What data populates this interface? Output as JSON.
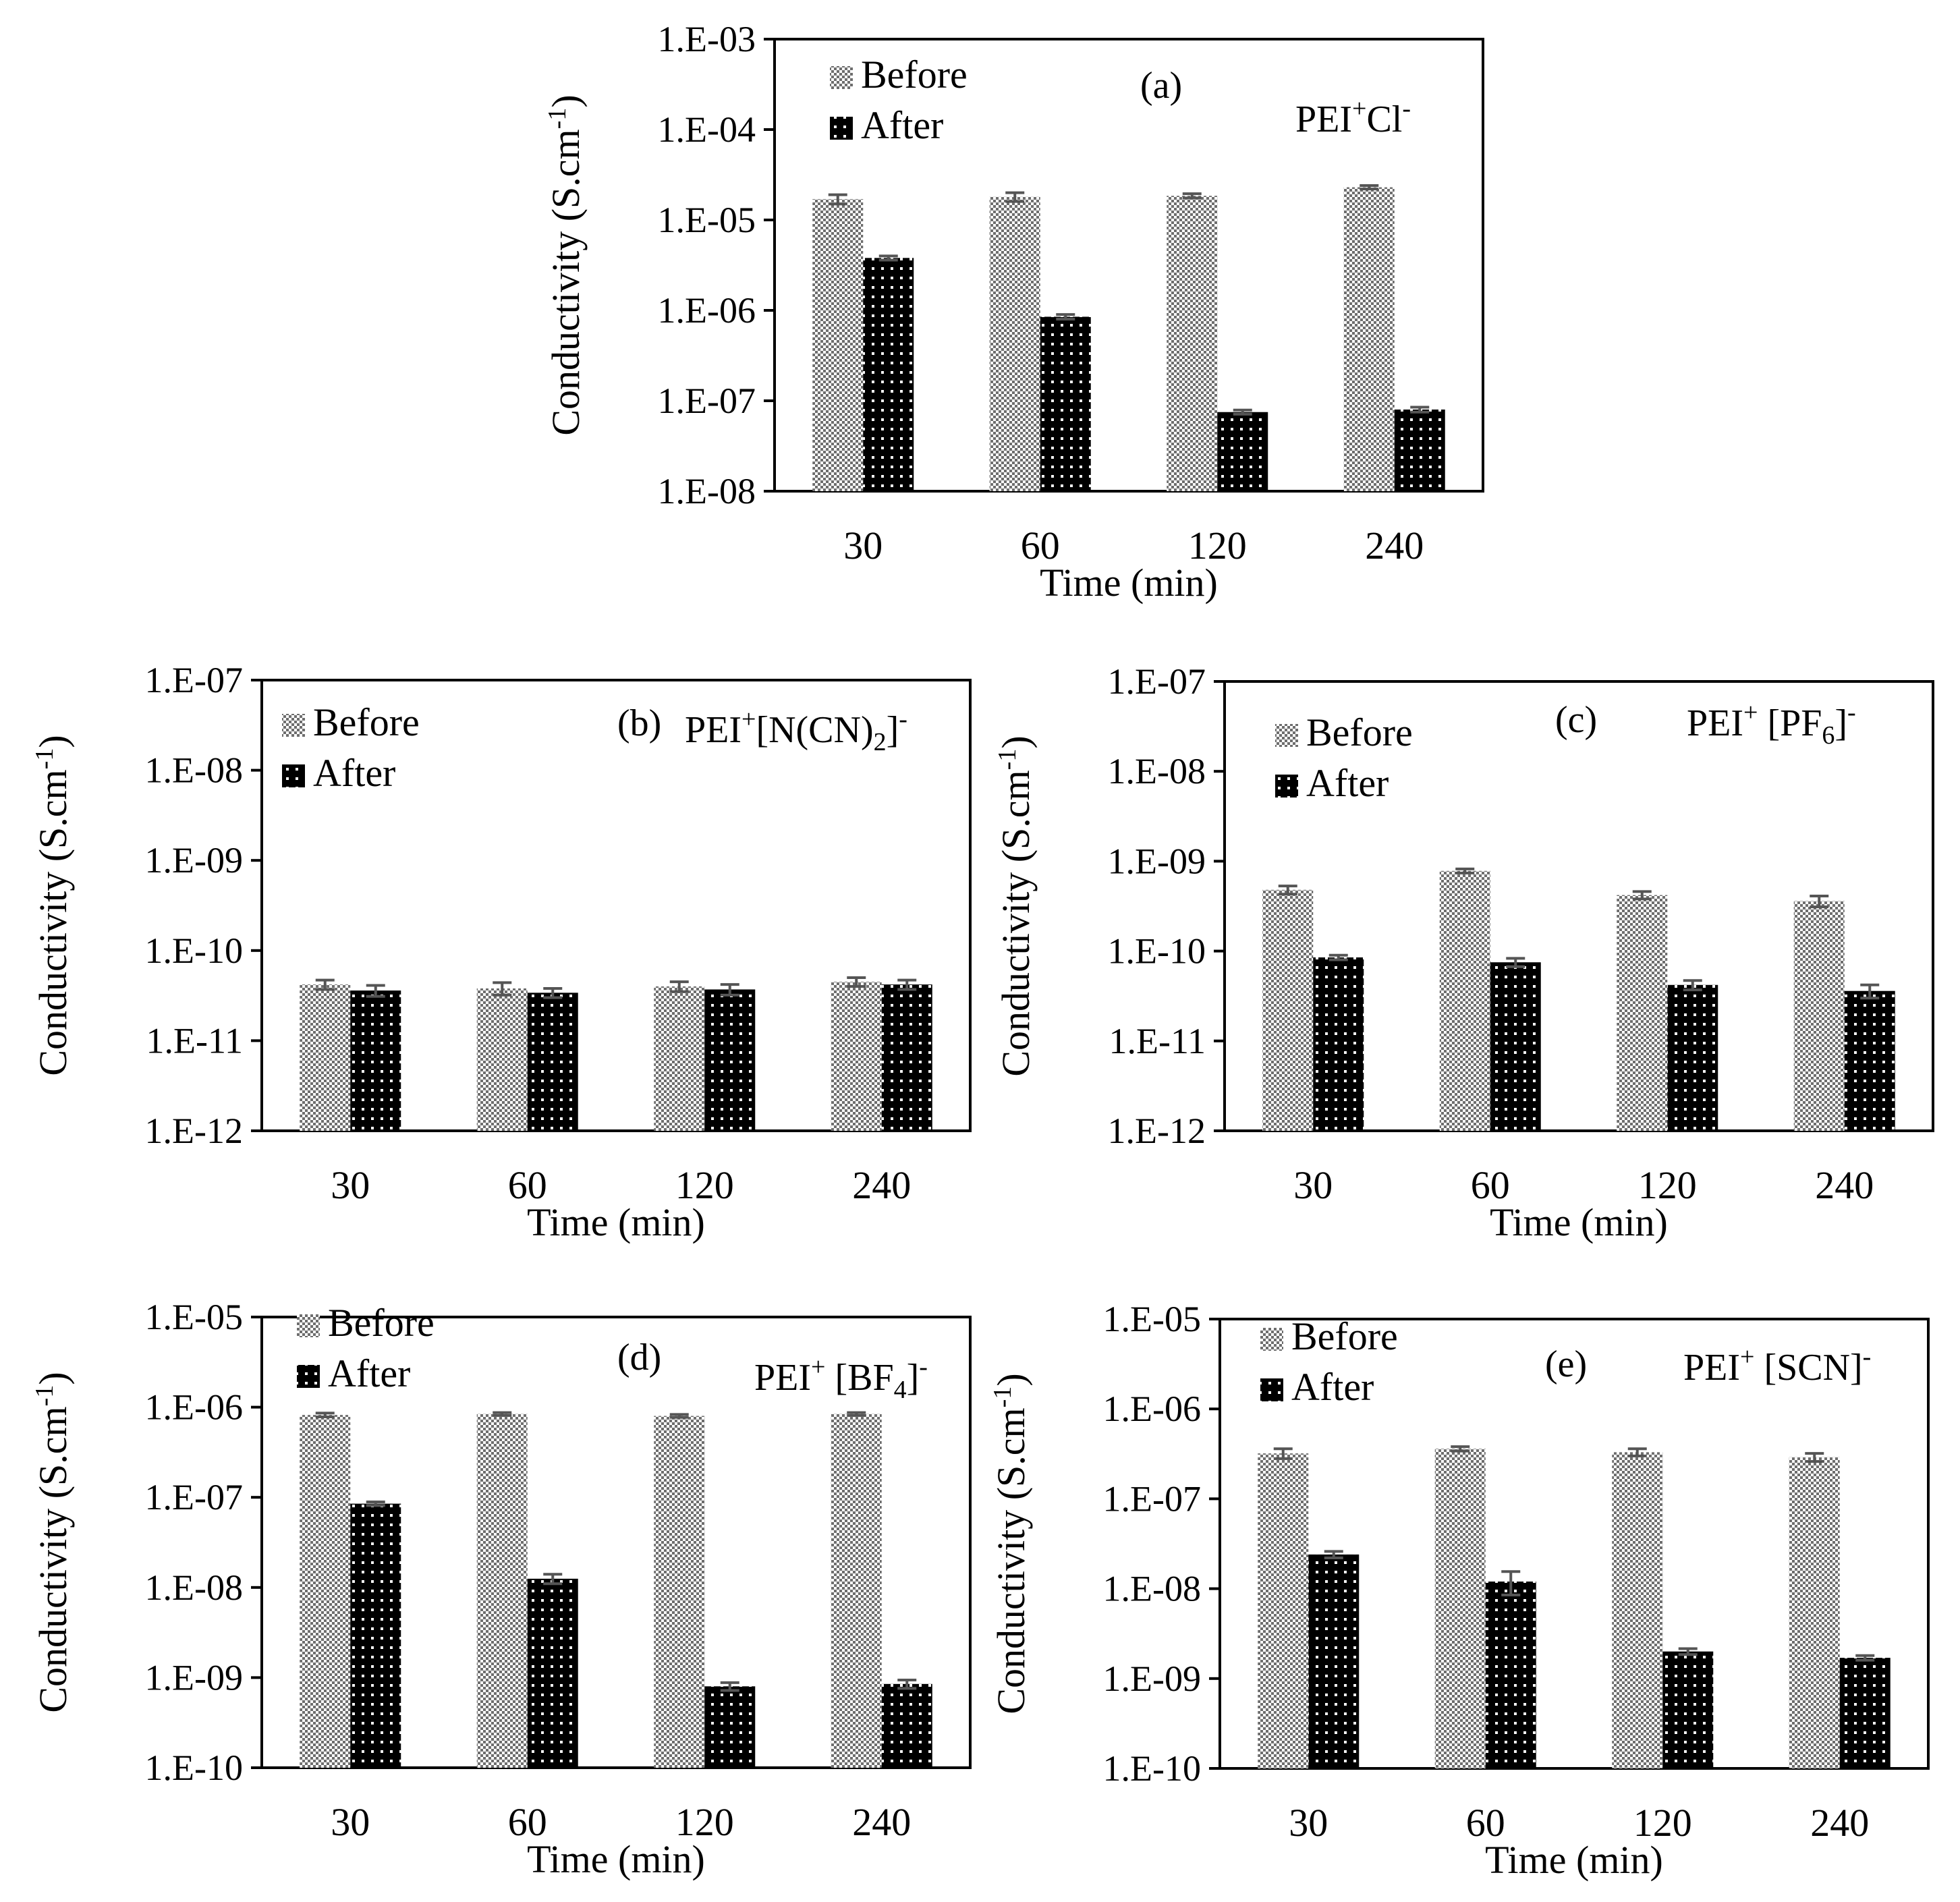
{
  "figure": {
    "colors": {
      "before_fill": "#8c8c8c",
      "after_fill": "#000000",
      "error_bar": "#555555",
      "axis": "#000000"
    }
  },
  "chart_data": [
    {
      "id": "a",
      "type": "bar",
      "panel_label": "(a)",
      "compound": {
        "base": "PEI",
        "cation_charge": "+",
        "anion_parts": [
          {
            "t": "Cl"
          }
        ],
        "anion_charge": "-"
      },
      "xlabel": "Time (min)",
      "ylabel": "Conductivity (S.cm",
      "ylabel_sup": "-1",
      "ylabel_close": ")",
      "yscale": "log",
      "ylim": [
        1e-08,
        0.001
      ],
      "ytick_labels": [
        "1.E-08",
        "1.E-07",
        "1.E-06",
        "1.E-05",
        "1.E-04",
        "1.E-03"
      ],
      "categories": [
        "30",
        "60",
        "120",
        "240"
      ],
      "legend": [
        "Before",
        "After"
      ],
      "series": [
        {
          "name": "Before",
          "values": [
            1.7e-05,
            1.8e-05,
            1.85e-05,
            2.3e-05
          ],
          "errors": [
            2e-06,
            2e-06,
            1e-06,
            1e-06
          ]
        },
        {
          "name": "After",
          "values": [
            3.8e-06,
            8.5e-07,
            7.5e-08,
            8e-08
          ],
          "errors": [
            2e-07,
            5e-08,
            4e-09,
            5e-09
          ]
        }
      ]
    },
    {
      "id": "b",
      "type": "bar",
      "panel_label": "(b)",
      "compound": {
        "base": "PEI",
        "cation_charge": "+",
        "anion_parts": [
          {
            "t": "[N(CN)"
          },
          {
            "t": "2",
            "sub": true
          },
          {
            "t": "]"
          }
        ],
        "anion_charge": "-"
      },
      "xlabel": "Time (min)",
      "ylabel": "Conductivity (S.cm",
      "ylabel_sup": "-1",
      "ylabel_close": ")",
      "yscale": "log",
      "ylim": [
        1e-12,
        1e-07
      ],
      "ytick_labels": [
        "1.E-12",
        "1.E-11",
        "1.E-10",
        "1.E-09",
        "1.E-08",
        "1.E-07"
      ],
      "categories": [
        "30",
        "60",
        "120",
        "240"
      ],
      "legend": [
        "Before",
        "After"
      ],
      "series": [
        {
          "name": "Before",
          "values": [
            4.2e-11,
            3.8e-11,
            4e-11,
            4.5e-11
          ],
          "errors": [
            5e-12,
            6e-12,
            5e-12,
            5e-12
          ]
        },
        {
          "name": "After",
          "values": [
            3.6e-11,
            3.4e-11,
            3.7e-11,
            4.2e-11
          ],
          "errors": [
            5e-12,
            4e-12,
            5e-12,
            5e-12
          ]
        }
      ]
    },
    {
      "id": "c",
      "type": "bar",
      "panel_label": "(c)",
      "compound": {
        "base": "PEI",
        "cation_charge": "+",
        "anion_parts": [
          {
            "t": " [PF"
          },
          {
            "t": "6",
            "sub": true
          },
          {
            "t": "]"
          }
        ],
        "anion_charge": "-"
      },
      "xlabel": "Time (min)",
      "ylabel": "Conductivity (S.cm",
      "ylabel_sup": "-1",
      "ylabel_close": ")",
      "yscale": "log",
      "ylim": [
        1e-12,
        1e-07
      ],
      "ytick_labels": [
        "1.E-12",
        "1.E-11",
        "1.E-10",
        "1.E-09",
        "1.E-08",
        "1.E-07"
      ],
      "categories": [
        "30",
        "60",
        "120",
        "240"
      ],
      "legend": [
        "Before",
        "After"
      ],
      "series": [
        {
          "name": "Before",
          "values": [
            4.8e-10,
            7.8e-10,
            4.2e-10,
            3.6e-10
          ],
          "errors": [
            5e-11,
            4e-11,
            4e-11,
            5e-11
          ]
        },
        {
          "name": "After",
          "values": [
            8.5e-11,
            7.5e-11,
            4.2e-11,
            3.6e-11
          ],
          "errors": [
            5e-12,
            8e-12,
            5e-12,
            6e-12
          ]
        }
      ]
    },
    {
      "id": "d",
      "type": "bar",
      "panel_label": "(d)",
      "compound": {
        "base": "PEI",
        "cation_charge": "+",
        "anion_parts": [
          {
            "t": " [BF"
          },
          {
            "t": "4",
            "sub": true
          },
          {
            "t": "]"
          }
        ],
        "anion_charge": "-"
      },
      "xlabel": "Time (min)",
      "ylabel": "Conductivity (S.cm",
      "ylabel_sup": "-1",
      "ylabel_close": ")",
      "yscale": "log",
      "ylim": [
        1e-10,
        1e-05
      ],
      "ytick_labels": [
        "1.E-10",
        "1.E-09",
        "1.E-08",
        "1.E-07",
        "1.E-06",
        "1.E-05"
      ],
      "categories": [
        "30",
        "60",
        "120",
        "240"
      ],
      "legend": [
        "Before",
        "After"
      ],
      "series": [
        {
          "name": "Before",
          "values": [
            8.2e-07,
            8.4e-07,
            8e-07,
            8.4e-07
          ],
          "errors": [
            4e-08,
            3e-08,
            3e-08,
            3e-08
          ]
        },
        {
          "name": "After",
          "values": [
            8.5e-08,
            1.25e-08,
            8e-10,
            8.5e-10
          ],
          "errors": [
            4e-09,
            1.5e-09,
            8e-11,
            9e-11
          ]
        }
      ]
    },
    {
      "id": "e",
      "type": "bar",
      "panel_label": "(e)",
      "compound": {
        "base": "PEI",
        "cation_charge": "+",
        "anion_parts": [
          {
            "t": " [SCN]"
          }
        ],
        "anion_charge": "-"
      },
      "xlabel": "Time (min)",
      "ylabel": "Conductivity (S.cm",
      "ylabel_sup": "-1",
      "ylabel_close": ")",
      "yscale": "log",
      "ylim": [
        1e-10,
        1e-05
      ],
      "ytick_labels": [
        "1.E-10",
        "1.E-09",
        "1.E-08",
        "1.E-07",
        "1.E-06",
        "1.E-05"
      ],
      "categories": [
        "30",
        "60",
        "120",
        "240"
      ],
      "legend": [
        "Before",
        "After"
      ],
      "series": [
        {
          "name": "Before",
          "values": [
            3.2e-07,
            3.6e-07,
            3.3e-07,
            2.9e-07
          ],
          "errors": [
            4e-08,
            2e-08,
            3e-08,
            3e-08
          ]
        },
        {
          "name": "After",
          "values": [
            2.4e-08,
            1.2e-08,
            2e-09,
            1.7e-09
          ],
          "errors": [
            2e-09,
            3.5e-09,
            1.5e-10,
            1e-10
          ]
        }
      ]
    }
  ]
}
